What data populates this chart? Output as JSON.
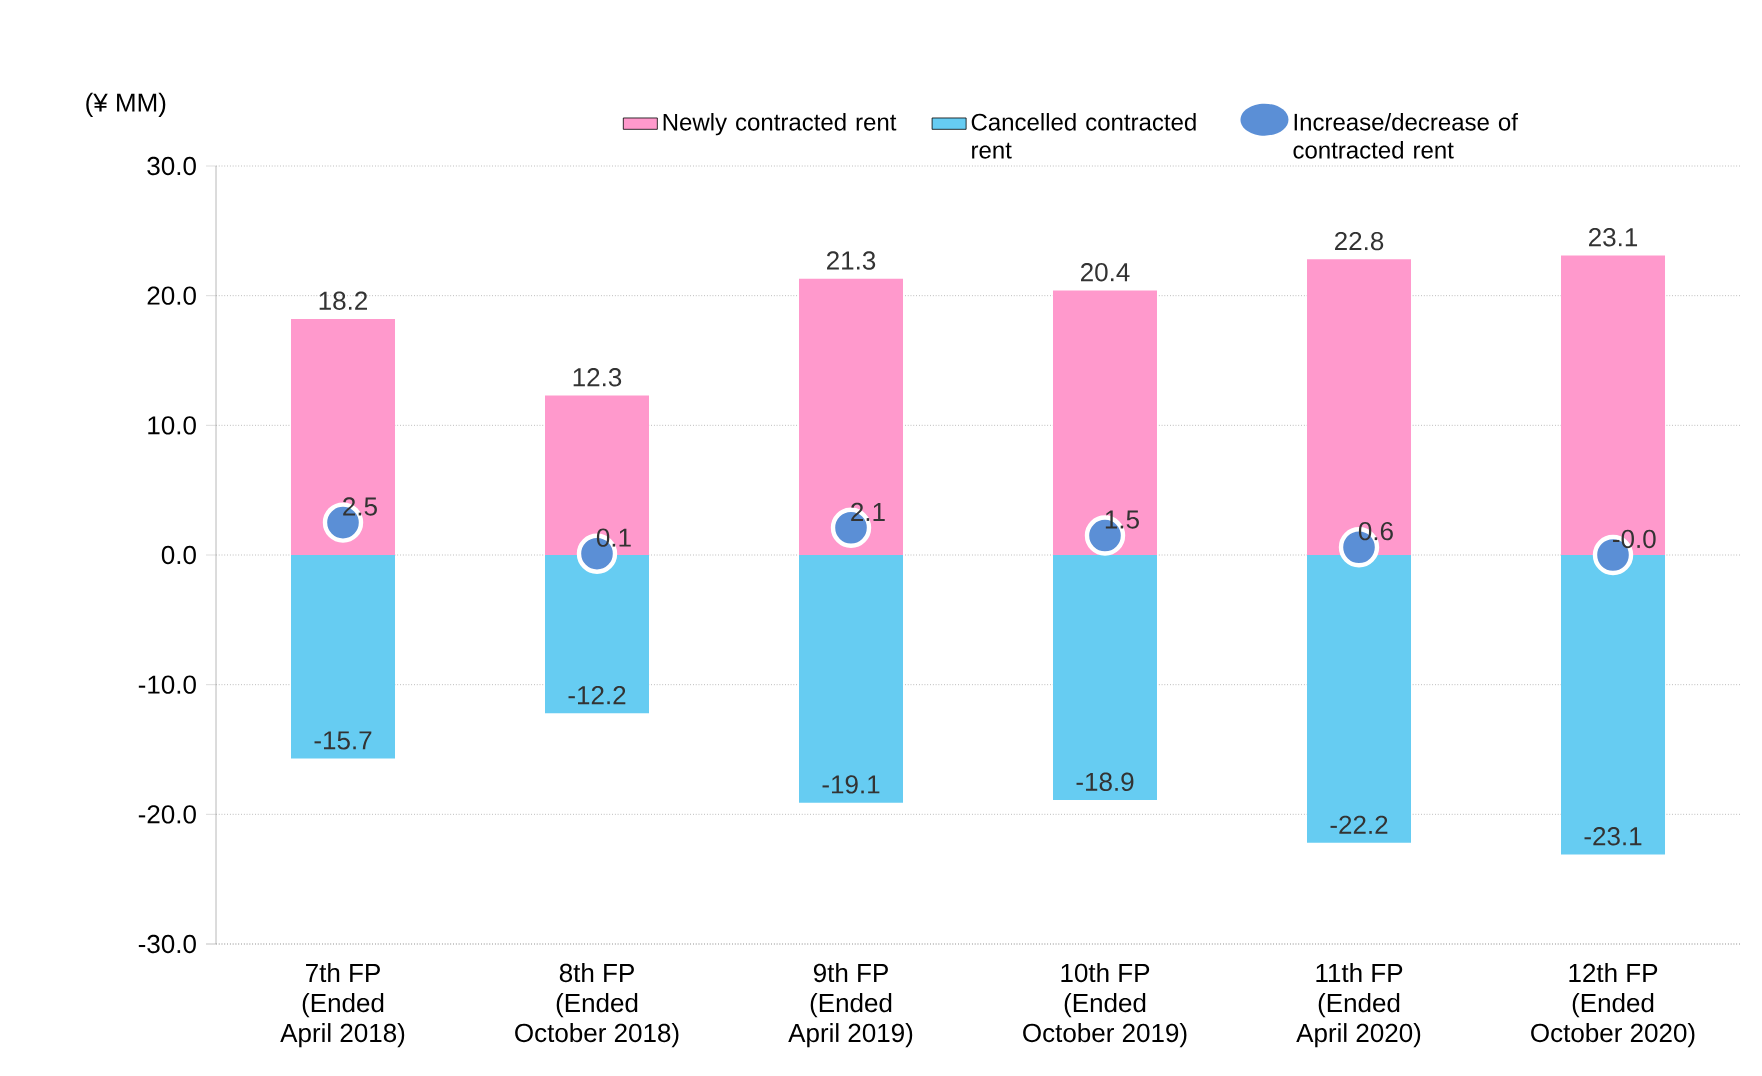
{
  "chart_data": {
    "type": "bar",
    "stacked": true,
    "ylabel": "(¥ MM)",
    "categories": [
      "7th FP\n(Ended\nApril 2018)",
      "8th FP\n(Ended\nOctober 2018)",
      "9th FP\n(Ended\nApril 2019)",
      "10th FP\n(Ended\nOctober 2019)",
      "11th FP\n(Ended\nApril 2020)",
      "12th FP\n(Ended\nOctober 2020)"
    ],
    "series": [
      {
        "name": "Newly contracted rent",
        "color": "#ff99cc",
        "values": [
          18.2,
          12.3,
          21.3,
          20.4,
          22.8,
          23.1
        ],
        "value_labels": [
          "18.2",
          "12.3",
          "21.3",
          "20.4",
          "22.8",
          "23.1"
        ]
      },
      {
        "name": "Cancelled contracted rent",
        "color": "#66ccf2",
        "values": [
          -15.7,
          -12.2,
          -19.1,
          -18.9,
          -22.2,
          -23.1
        ],
        "value_labels": [
          "-15.7",
          "-12.2",
          "-19.1",
          "-18.9",
          "-22.2",
          "-23.1"
        ]
      },
      {
        "name": "Increase/decrease of contracted rent",
        "type": "scatter",
        "marker": "circle",
        "color": "#5b8fd6",
        "values": [
          2.5,
          0.1,
          2.1,
          1.5,
          0.6,
          -0.0
        ],
        "value_labels": [
          "2.5",
          "0.1",
          "2.1",
          "1.5",
          "0.6",
          "-0.0"
        ]
      }
    ],
    "ylim": [
      -30,
      30
    ],
    "yticks": [
      {
        "value": -30,
        "label": "-30.0"
      },
      {
        "value": -20,
        "label": "-20.0"
      },
      {
        "value": -10,
        "label": "-10.0"
      },
      {
        "value": 0,
        "label": "0.0"
      },
      {
        "value": 10,
        "label": "10.0"
      },
      {
        "value": 20,
        "label": "20.0"
      },
      {
        "value": 30,
        "label": "30.0"
      }
    ],
    "grid": "y",
    "legend": "top"
  }
}
